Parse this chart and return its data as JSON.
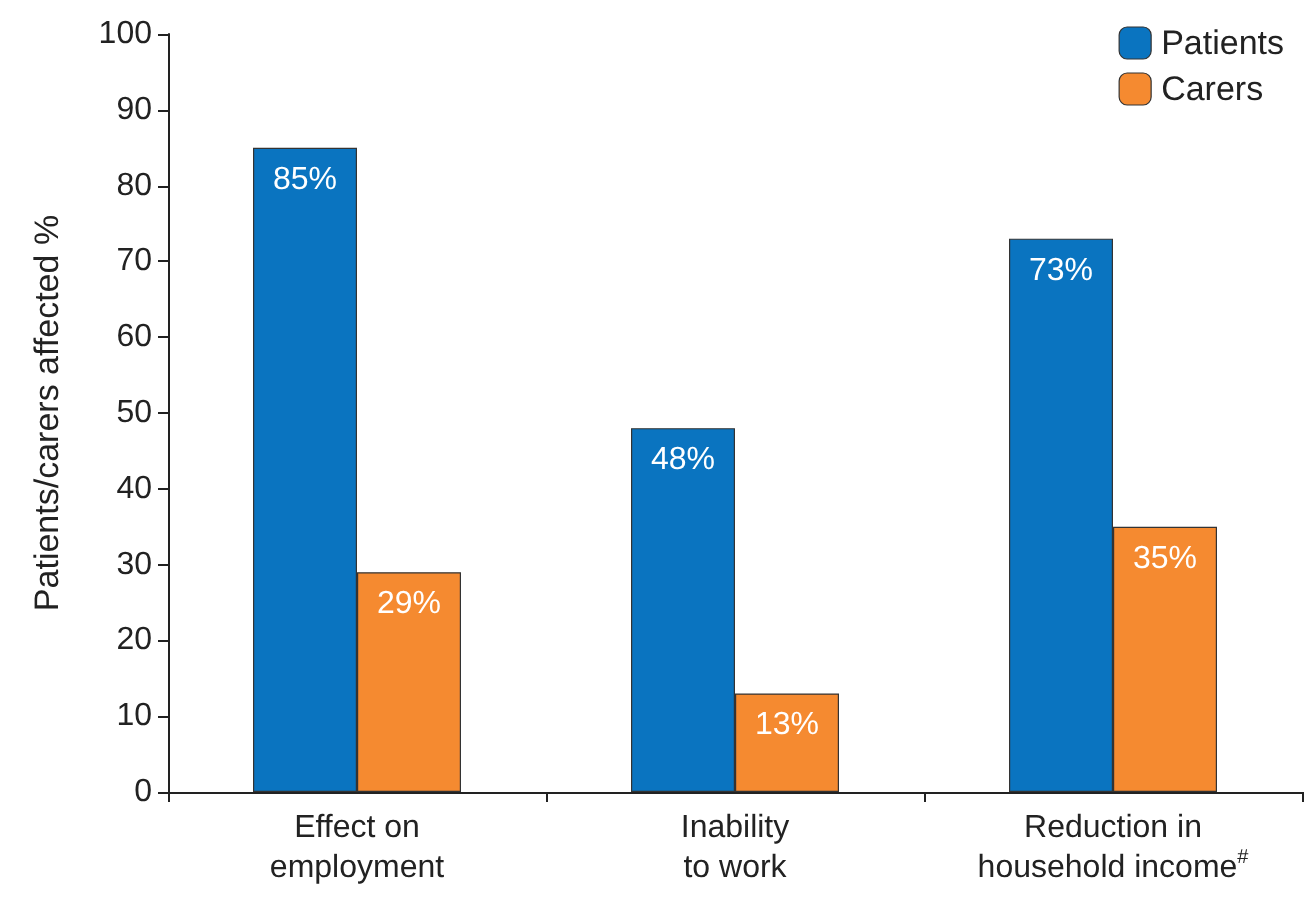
{
  "chart_data": {
    "type": "bar",
    "ylabel": "Patients/carers affected %",
    "categories": [
      "Effect on\nemployment",
      "Inability\nto work",
      "Reduction in\nhousehold income$^{#}$"
    ],
    "series": [
      {
        "name": "Patients",
        "color": "#0a74c0",
        "values": [
          85,
          48,
          73
        ],
        "value_labels": [
          "85%",
          "48%",
          "73%"
        ]
      },
      {
        "name": "Carers",
        "color": "#f58a30",
        "values": [
          29,
          13,
          35
        ],
        "value_labels": [
          "29%",
          "13%",
          "35%"
        ]
      }
    ],
    "ylim": [
      0,
      100
    ],
    "yticks": [
      0,
      10,
      20,
      30,
      40,
      50,
      60,
      70,
      80,
      90,
      100
    ],
    "grid": false,
    "legend": "top right"
  }
}
